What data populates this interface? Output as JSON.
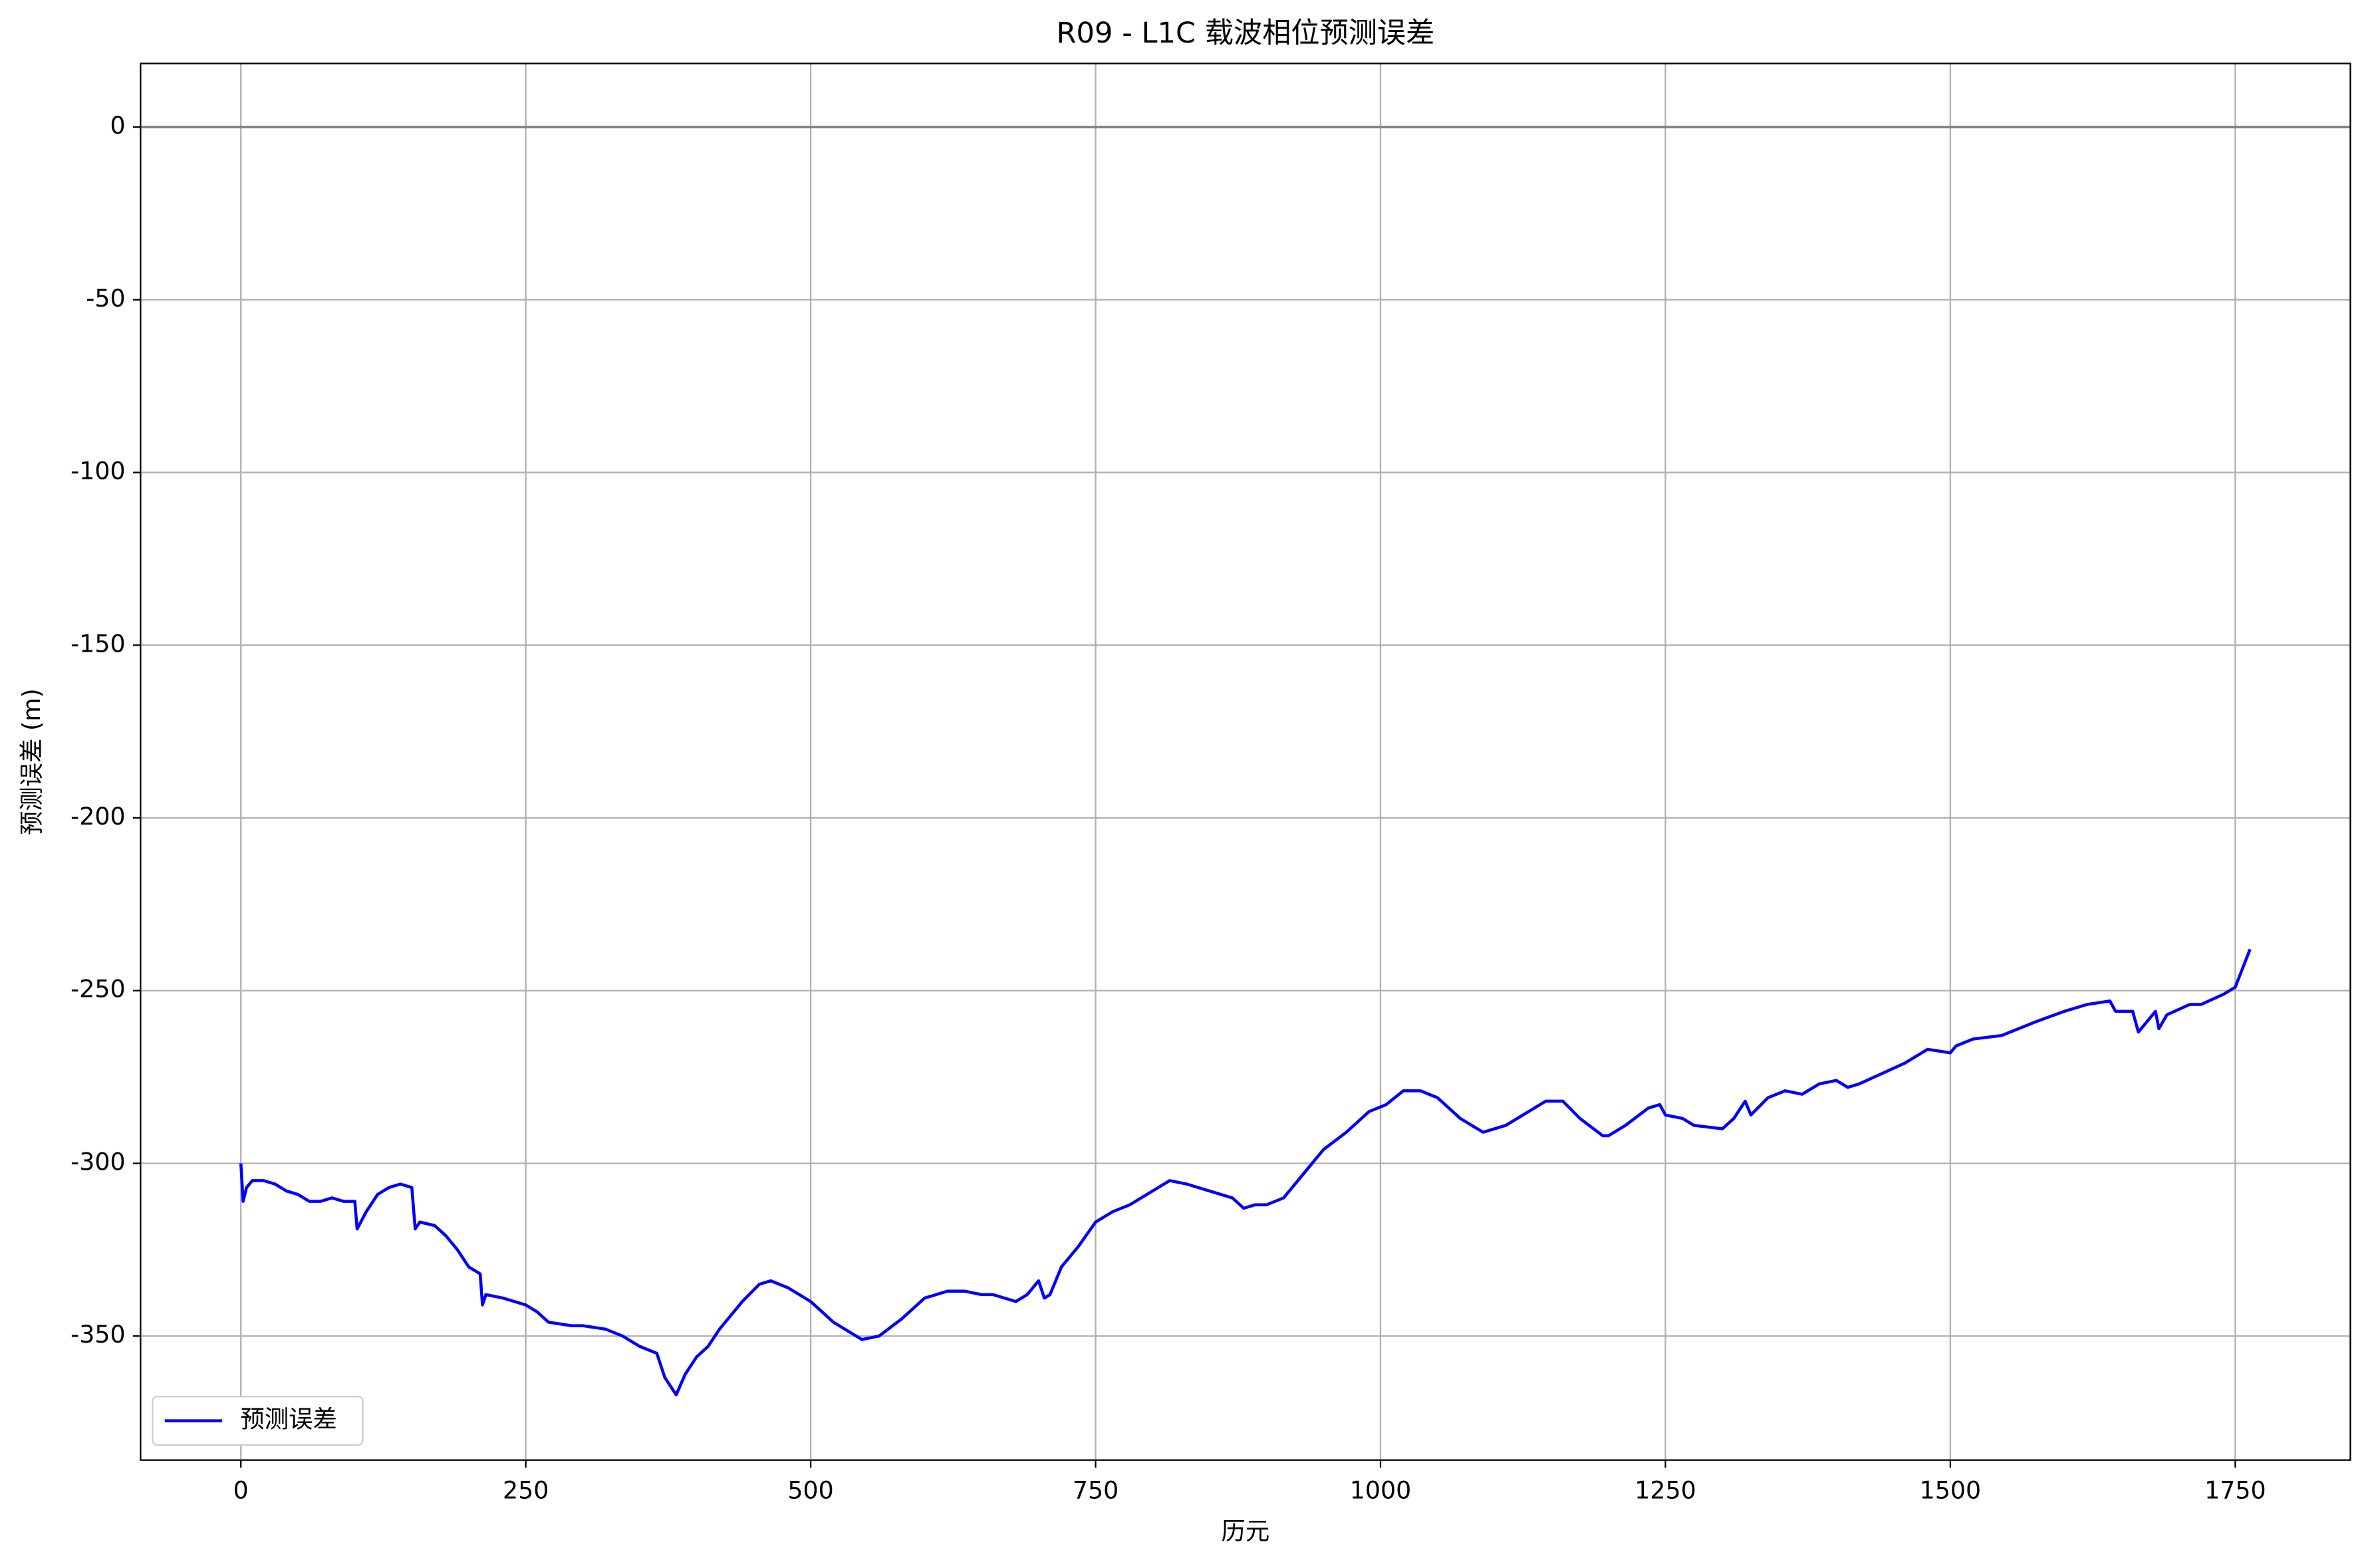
{
  "chart_data": {
    "type": "line",
    "title": "R09 - L1C 载波相位预测误差",
    "xlabel": "历元",
    "ylabel": "预测误差 (m)",
    "xlim": [
      -88,
      1851
    ],
    "ylim": [
      -385.9,
      18.4
    ],
    "xticks": [
      0,
      250,
      500,
      750,
      1000,
      1250,
      1500,
      1750
    ],
    "yticks": [
      0,
      -50,
      -100,
      -150,
      -200,
      -250,
      -300,
      -350
    ],
    "grid": true,
    "legend": "lower left",
    "hline": 0,
    "hline_color": "#808080",
    "x": [
      0,
      2,
      5,
      10,
      20,
      30,
      40,
      50,
      60,
      70,
      80,
      90,
      100,
      102,
      110,
      120,
      130,
      140,
      150,
      153,
      157,
      170,
      180,
      190,
      200,
      210,
      212,
      215,
      230,
      250,
      260,
      270,
      290,
      300,
      320,
      335,
      350,
      365,
      372,
      382,
      390,
      400,
      410,
      420,
      440,
      455,
      465,
      480,
      500,
      510,
      520,
      535,
      545,
      560,
      580,
      600,
      620,
      635,
      650,
      660,
      680,
      690,
      700,
      705,
      710,
      720,
      735,
      750,
      765,
      780,
      800,
      815,
      830,
      850,
      870,
      880,
      890,
      900,
      915,
      930,
      950,
      970,
      990,
      1005,
      1020,
      1035,
      1050,
      1070,
      1090,
      1110,
      1130,
      1145,
      1160,
      1175,
      1195,
      1200,
      1215,
      1235,
      1245,
      1250,
      1265,
      1275,
      1300,
      1310,
      1320,
      1325,
      1340,
      1355,
      1370,
      1385,
      1400,
      1410,
      1420,
      1440,
      1460,
      1480,
      1500,
      1505,
      1520,
      1545,
      1560,
      1575,
      1600,
      1620,
      1640,
      1645,
      1660,
      1665,
      1680,
      1683,
      1690,
      1710,
      1720,
      1740,
      1750,
      1763
    ],
    "series": [
      {
        "name": "预测误差",
        "color": "#0000ff",
        "values": [
          -300,
          -311,
          -307,
          -305,
          -305,
          -306,
          -308,
          -309,
          -311,
          -311,
          -310,
          -311,
          -311,
          -319,
          -314,
          -309,
          -307,
          -306,
          -307,
          -319,
          -317,
          -318,
          -321,
          -325,
          -330,
          -332,
          -341,
          -338,
          -339,
          -341,
          -343,
          -346,
          -347,
          -347,
          -348,
          -350,
          -353,
          -355,
          -362,
          -367,
          -361,
          -356,
          -353,
          -348,
          -340,
          -335,
          -334,
          -336,
          -340,
          -343,
          -346,
          -349,
          -351,
          -350,
          -345,
          -339,
          -337,
          -337,
          -338,
          -338,
          -340,
          -338,
          -334,
          -339,
          -338,
          -330,
          -324,
          -317,
          -314,
          -312,
          -308,
          -305,
          -306,
          -308,
          -310,
          -313,
          -312,
          -312,
          -310,
          -304,
          -296,
          -291,
          -285,
          -283,
          -279,
          -279,
          -281,
          -287,
          -291,
          -289,
          -285,
          -282,
          -282,
          -287,
          -292,
          -292,
          -289,
          -284,
          -283,
          -286,
          -287,
          -289,
          -290,
          -287,
          -282,
          -286,
          -281,
          -279,
          -280,
          -277,
          -276,
          -278,
          -277,
          -274,
          -271,
          -267,
          -268,
          -266,
          -264,
          -263,
          -261,
          -259,
          -256,
          -254,
          -253,
          -256,
          -256,
          -262,
          -256,
          -261,
          -257,
          -254,
          -254,
          -251,
          -249,
          -238
        ]
      }
    ]
  }
}
